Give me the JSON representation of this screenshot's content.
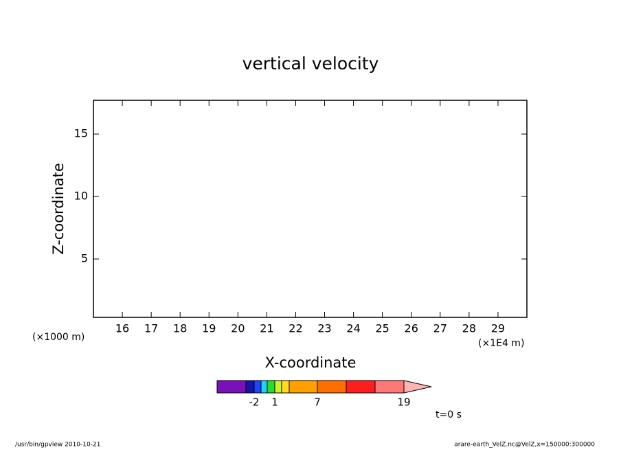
{
  "chart_data": {
    "type": "empty",
    "title": "vertical velocity",
    "x_label": "X-coordinate",
    "y_label": "Z-coordinate",
    "y_unit": "(×1000 m)",
    "x_unit": "(×1E4 m)",
    "xlim": [
      15,
      30
    ],
    "xticks": [
      16,
      17,
      18,
      19,
      20,
      21,
      22,
      23,
      24,
      25,
      26,
      27,
      28,
      29
    ],
    "ylim": [
      0.33,
      17.7
    ],
    "yticks": [
      5,
      10,
      15
    ],
    "colorbar": {
      "colors": [
        "#7a10b8",
        "#1414a8",
        "#1e46ff",
        "#1ed2ff",
        "#28dc28",
        "#d2f028",
        "#ffdc1e",
        "#ffa000",
        "#ff6e00",
        "#ff1e1e",
        "#ff7878",
        "#ffb4b4"
      ],
      "levels": [
        null,
        -2,
        null,
        null,
        1,
        null,
        null,
        7,
        null,
        null,
        19
      ]
    },
    "time_label": "t=0 s"
  },
  "footer": {
    "left": "/usr/bin/gpview   2010-10-21",
    "right": "arare-earth_VelZ.nc@VelZ,x=150000:300000"
  }
}
